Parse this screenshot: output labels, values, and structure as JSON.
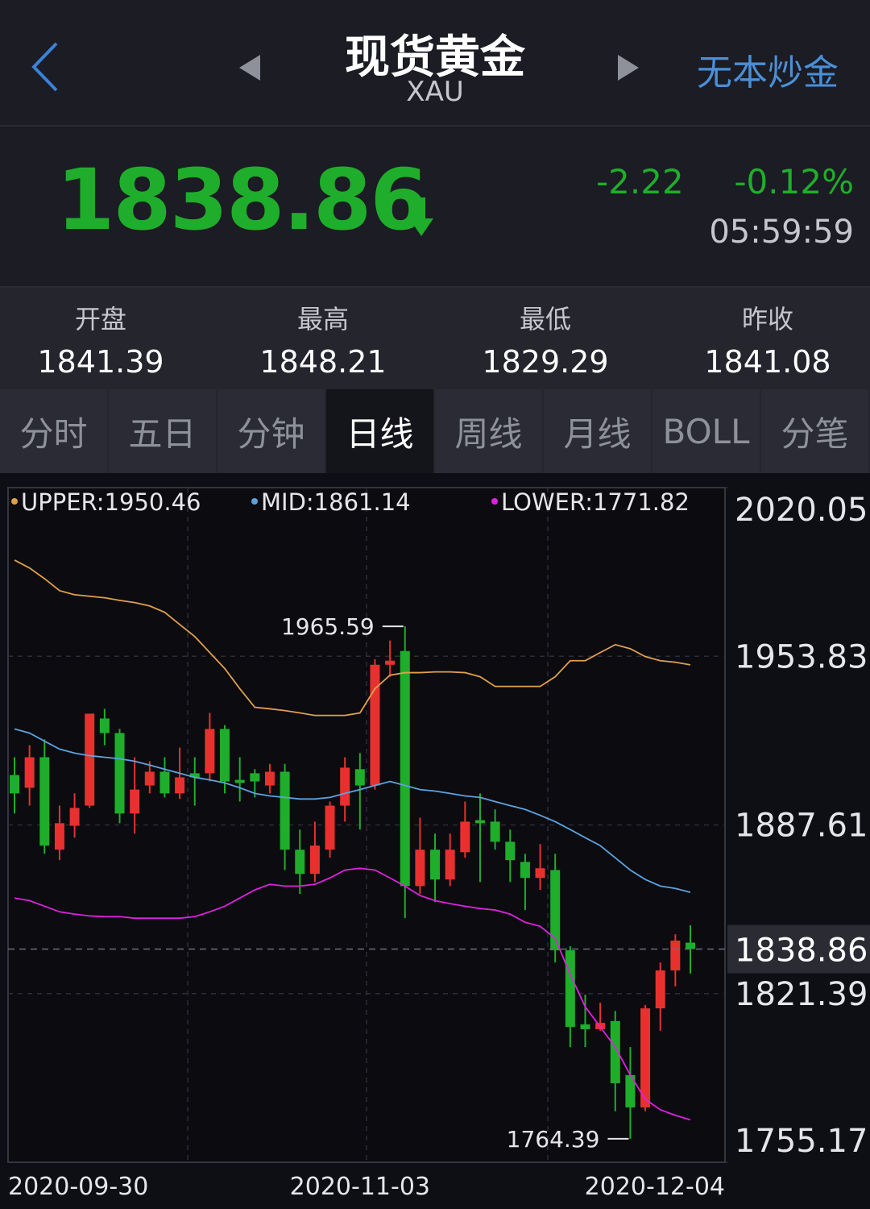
{
  "header": {
    "title": "现货黄金",
    "subtitle": "XAU",
    "link": "无本炒金"
  },
  "quote": {
    "price": 1838.86,
    "change": -2.22,
    "change_percent": "-0.12%",
    "time": "05:59:59"
  },
  "stats": [
    {
      "label": "开盘",
      "value": 1841.39
    },
    {
      "label": "最高",
      "value": 1848.21
    },
    {
      "label": "最低",
      "value": 1829.29
    },
    {
      "label": "昨收",
      "value": 1841.08
    }
  ],
  "tabs": [
    "分时",
    "五日",
    "分钟",
    "日线",
    "周线",
    "月线",
    "BOLL",
    "分笔"
  ],
  "active_tab": 3,
  "chart_data": {
    "type": "candlestick",
    "categories": [
      "2020-09-30",
      null,
      null,
      null,
      null,
      null,
      null,
      null,
      null,
      null,
      null,
      null,
      null,
      null,
      null,
      null,
      null,
      null,
      null,
      null,
      null,
      null,
      null,
      "2020-11-03",
      null,
      null,
      null,
      null,
      null,
      null,
      null,
      null,
      null,
      null,
      null,
      null,
      null,
      null,
      null,
      null,
      null,
      null,
      null,
      null,
      null,
      "2020-12-04"
    ],
    "open": [
      1907.2,
      1902.2,
      1914.2,
      1877.9,
      1887.3,
      1895.2,
      1929.4,
      1923.7,
      1892.1,
      1903.1,
      1908.5,
      1900.0,
      1907.9,
      1907.9,
      1925.3,
      1905.3,
      1907.9,
      1903.1,
      1908.5,
      1877.9,
      1868.4,
      1877.9,
      1895.2,
      1909.5,
      1903.1,
      1950.5,
      1955.9,
      1863.6,
      1877.9,
      1866.2,
      1876.9,
      1889.5,
      1888.9,
      1881.0,
      1873.1,
      1866.8,
      1869.9,
      1838.4,
      1809.3,
      1807.4,
      1810.6,
      1789.4,
      1776.7,
      1815.6,
      1830.5,
      1841.39
    ],
    "high": [
      1914.2,
      1918.9,
      1921.2,
      1895.2,
      1900.0,
      1931.3,
      1933.2,
      1925.3,
      1914.2,
      1912.6,
      1914.2,
      1918.0,
      1914.2,
      1931.6,
      1926.8,
      1914.2,
      1909.5,
      1911.6,
      1911.6,
      1885.8,
      1888.9,
      1896.8,
      1914.2,
      1915.8,
      1952.7,
      1960.0,
      1965.59,
      1890.5,
      1884.2,
      1884.2,
      1896.8,
      1900.0,
      1893.7,
      1885.8,
      1876.3,
      1880.1,
      1876.3,
      1840.0,
      1821.0,
      1817.8,
      1814.6,
      1800.4,
      1816.9,
      1833.6,
      1844.7,
      1848.21
    ],
    "low": [
      1892.1,
      1895.2,
      1876.3,
      1873.8,
      1882.6,
      1894.3,
      1918.9,
      1888.3,
      1884.2,
      1900.0,
      1898.4,
      1897.8,
      1895.2,
      1904.7,
      1900.0,
      1896.8,
      1898.4,
      1900.0,
      1869.9,
      1860.5,
      1865.2,
      1874.7,
      1888.9,
      1885.8,
      1901.5,
      1945.8,
      1851.0,
      1860.5,
      1857.3,
      1863.6,
      1874.7,
      1865.2,
      1877.9,
      1865.2,
      1854.2,
      1862.1,
      1833.6,
      1800.4,
      1800.4,
      1806.8,
      1775.2,
      1764.39,
      1775.2,
      1806.8,
      1824.2,
      1829.29
    ],
    "close": [
      1900.0,
      1914.2,
      1879.5,
      1888.3,
      1894.3,
      1931.3,
      1923.7,
      1892.1,
      1901.5,
      1908.5,
      1900.0,
      1906.3,
      1906.3,
      1925.3,
      1904.7,
      1904.1,
      1904.7,
      1908.5,
      1877.9,
      1868.4,
      1879.5,
      1895.2,
      1910.1,
      1903.1,
      1950.5,
      1952.1,
      1863.6,
      1877.9,
      1866.2,
      1877.9,
      1888.9,
      1888.3,
      1881.0,
      1873.8,
      1866.8,
      1870.6,
      1838.4,
      1808.3,
      1807.4,
      1809.9,
      1786.2,
      1776.7,
      1815.6,
      1830.5,
      1842.2,
      1838.86
    ],
    "up_color": "#e8312f",
    "down_color": "#1fae2b",
    "series": [
      {
        "name": "UPPER:1950.46",
        "color": "#e0a04a",
        "values": [
          1991.6,
          1988.5,
          1984.3,
          1979.6,
          1978.0,
          1977.4,
          1976.8,
          1975.8,
          1974.9,
          1973.6,
          1971.1,
          1966.3,
          1961.6,
          1955.3,
          1949.0,
          1941.1,
          1933.8,
          1933.2,
          1932.5,
          1931.6,
          1930.6,
          1930.6,
          1930.6,
          1931.6,
          1941.1,
          1946.4,
          1947.4,
          1947.4,
          1947.7,
          1947.7,
          1947.4,
          1945.8,
          1942.0,
          1942.0,
          1942.0,
          1942.0,
          1945.8,
          1952.1,
          1952.1,
          1955.3,
          1958.4,
          1956.8,
          1953.7,
          1952.1,
          1951.5,
          1950.46
        ]
      },
      {
        "name": "MID:1861.14",
        "color": "#5ba3e0",
        "values": [
          1925.3,
          1923.7,
          1920.5,
          1917.4,
          1915.8,
          1914.8,
          1914.2,
          1913.6,
          1912.6,
          1911.1,
          1909.5,
          1907.9,
          1906.3,
          1905.3,
          1904.1,
          1902.2,
          1900.0,
          1899.0,
          1898.4,
          1897.8,
          1897.8,
          1898.4,
          1900.0,
          1901.5,
          1903.1,
          1904.7,
          1903.1,
          1901.5,
          1900.9,
          1900.0,
          1899.0,
          1898.4,
          1896.8,
          1895.2,
          1893.7,
          1891.4,
          1888.9,
          1885.8,
          1882.6,
          1879.5,
          1874.7,
          1869.9,
          1866.2,
          1863.6,
          1862.7,
          1861.14
        ]
      },
      {
        "name": "LOWER:1771.82",
        "color": "#e020e0",
        "values": [
          1858.9,
          1857.9,
          1855.7,
          1853.5,
          1852.6,
          1851.9,
          1851.6,
          1851.6,
          1851.0,
          1851.0,
          1851.0,
          1851.0,
          1851.6,
          1853.5,
          1855.7,
          1858.9,
          1862.1,
          1864.3,
          1863.6,
          1863.6,
          1864.3,
          1866.8,
          1869.9,
          1870.6,
          1869.9,
          1866.8,
          1863.6,
          1859.9,
          1857.9,
          1856.7,
          1855.7,
          1854.8,
          1854.2,
          1852.6,
          1849.4,
          1847.8,
          1843.1,
          1828.9,
          1816.2,
          1808.3,
          1800.4,
          1789.4,
          1779.9,
          1775.8,
          1773.6,
          1771.82
        ]
      }
    ],
    "ylim": [
      1755.17,
      2020.05
    ],
    "yticks": [
      2020.05,
      1953.83,
      1887.61,
      1821.39,
      1755.17
    ],
    "last_price": 1838.86,
    "annotations": [
      1965.59,
      1764.39
    ],
    "grid": true
  }
}
